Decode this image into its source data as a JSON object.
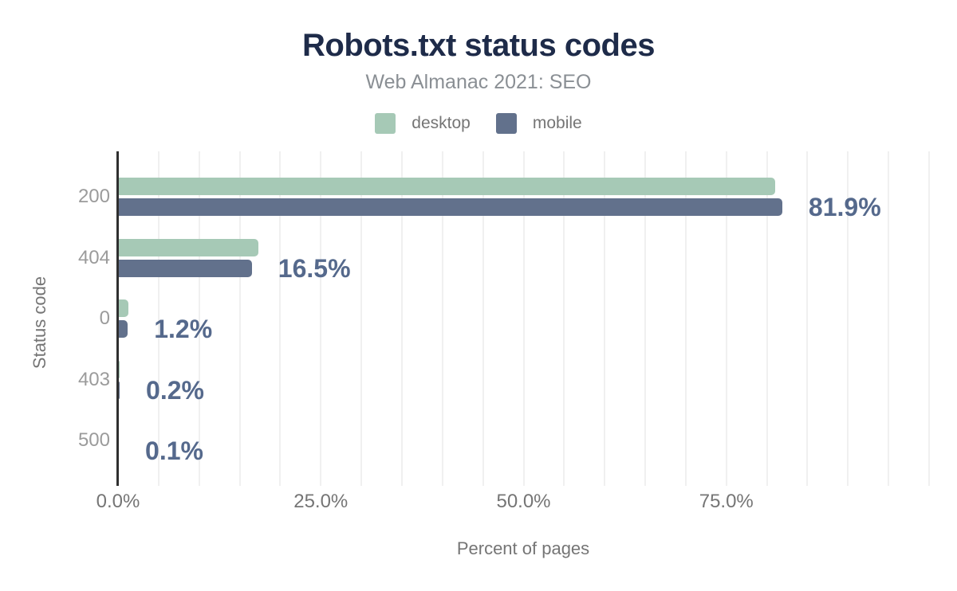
{
  "header": {
    "title": "Robots.txt status codes",
    "subtitle": "Web Almanac 2021: SEO"
  },
  "legend": {
    "items": [
      {
        "label": "desktop",
        "color": "#a6c9b6"
      },
      {
        "label": "mobile",
        "color": "#62718c"
      }
    ]
  },
  "colors": {
    "title": "#1e2b49",
    "subtitle": "#8a8f94",
    "legend_text": "#757575",
    "category_label": "#9b9b9b",
    "tick_label": "#757575",
    "axis_title": "#757575",
    "data_label": "#55698c",
    "gridline": "#f0f0f0",
    "axis_line": "#303030",
    "desktop": "#a6c9b6",
    "mobile": "#62718c"
  },
  "chart_data": {
    "type": "bar",
    "orientation": "horizontal",
    "title": "Robots.txt status codes",
    "subtitle": "Web Almanac 2021: SEO",
    "categories": [
      "200",
      "404",
      "0",
      "403",
      "500"
    ],
    "series": [
      {
        "name": "desktop",
        "color": "#a6c9b6",
        "values": [
          81.0,
          17.3,
          1.3,
          0.2,
          0.1
        ]
      },
      {
        "name": "mobile",
        "color": "#62718c",
        "values": [
          81.9,
          16.5,
          1.2,
          0.2,
          0.1
        ]
      }
    ],
    "data_labels": [
      "81.9%",
      "16.5%",
      "1.2%",
      "0.2%",
      "0.1%"
    ],
    "data_labels_follow_series": "mobile",
    "xlabel": "Percent of pages",
    "ylabel": "Status code",
    "x_ticks": [
      "0.0%",
      "25.0%",
      "50.0%",
      "75.0%"
    ],
    "x_tick_values": [
      0,
      25,
      50,
      75
    ],
    "xlim": [
      0,
      100
    ],
    "grid": true,
    "gridline_step_percent": 5,
    "legend_position": "top"
  }
}
